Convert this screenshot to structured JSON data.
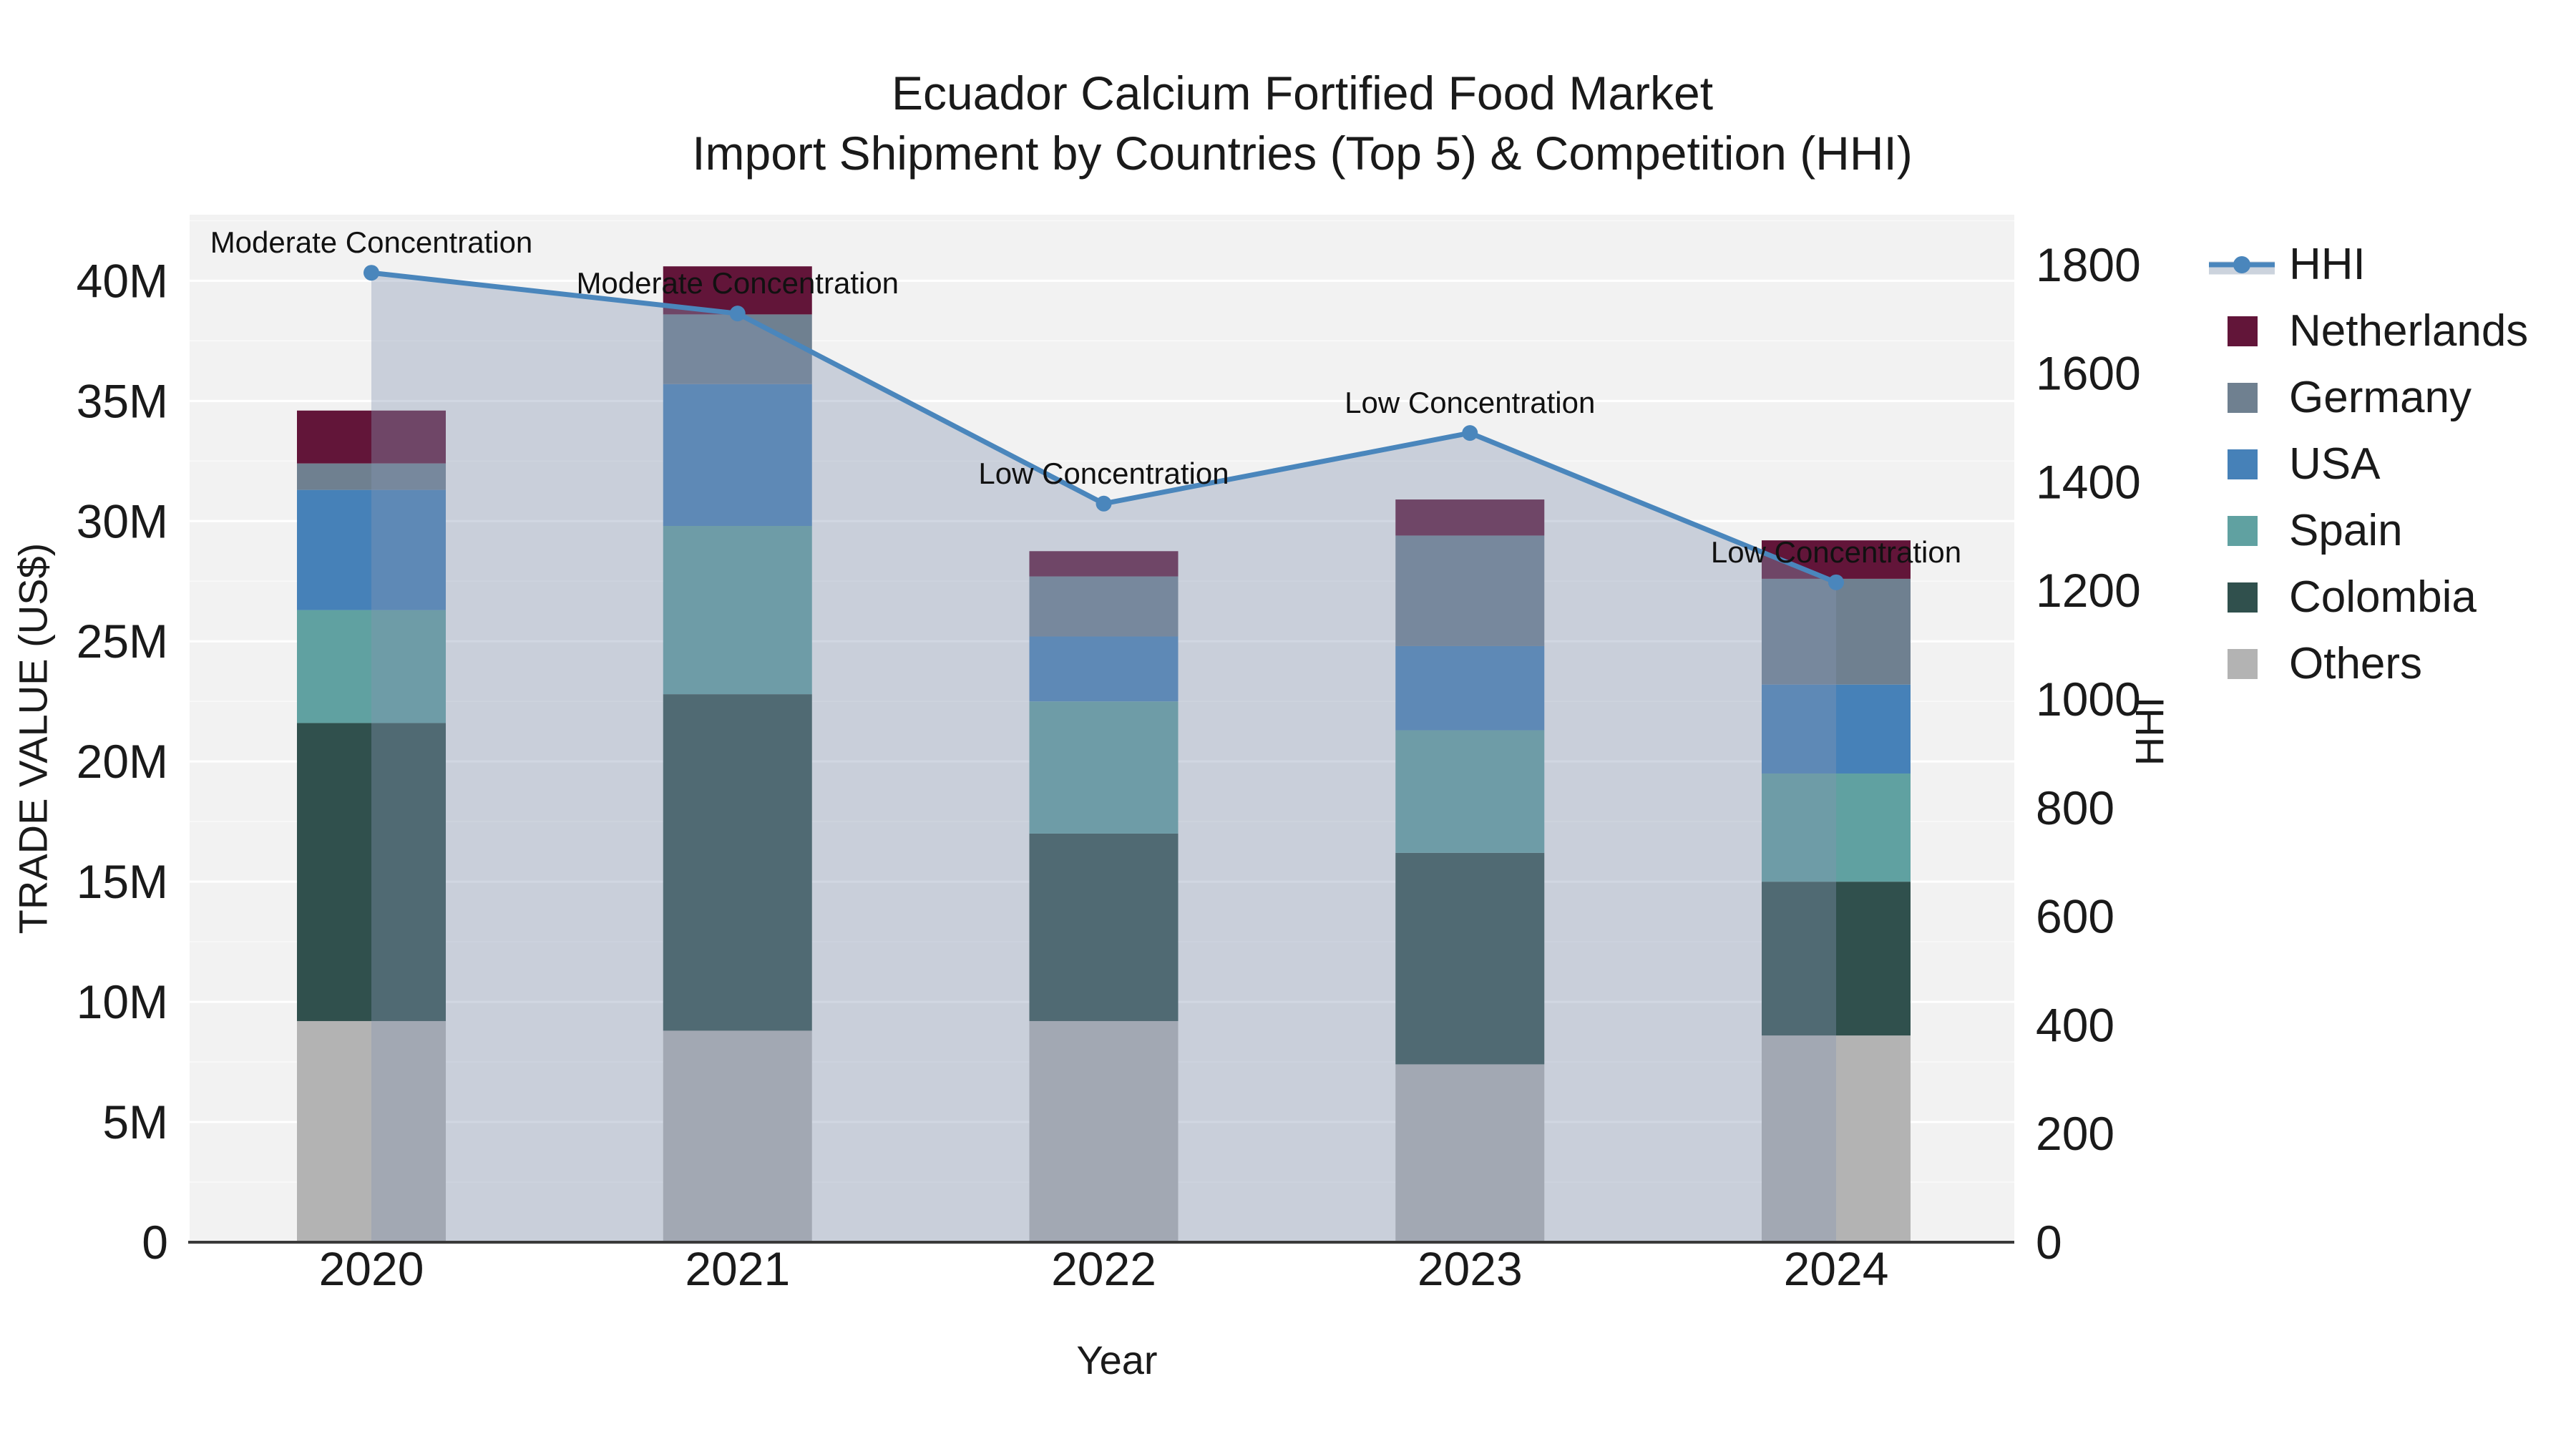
{
  "title": {
    "line1": "Ecuador Calcium Fortified Food Market",
    "line2": "Import Shipment by Countries (Top 5) & Competition (HHI)"
  },
  "axes": {
    "x_title": "Year",
    "y_left_title": "TRADE VALUE (US$)",
    "y_right_title": "HHI"
  },
  "legend": {
    "hhi_label": "HHI",
    "items": [
      "HHI",
      "Netherlands",
      "Germany",
      "USA",
      "Spain",
      "Colombia",
      "Others"
    ]
  },
  "chart_data": {
    "type": "bar",
    "subtype": "stacked-bars-with-line-overlay",
    "title": "Ecuador Calcium Fortified Food Market Import Shipment by Countries (Top 5) & Competition (HHI)",
    "xlabel": "Year",
    "ylabel_left": "TRADE VALUE (US$)",
    "ylabel_right": "HHI",
    "grid": true,
    "legend_position": "right-outside",
    "categories": [
      "2020",
      "2021",
      "2022",
      "2023",
      "2024"
    ],
    "series": [
      {
        "name": "Others",
        "color": "#b3b3b3",
        "values": [
          9.2,
          8.8,
          9.2,
          7.4,
          8.6
        ]
      },
      {
        "name": "Colombia",
        "color": "#30504d",
        "values": [
          12.4,
          14.0,
          7.8,
          8.8,
          6.4
        ]
      },
      {
        "name": "Spain",
        "color": "#60a1a1",
        "values": [
          4.7,
          7.0,
          5.5,
          5.1,
          4.5
        ]
      },
      {
        "name": "USA",
        "color": "#4681b8",
        "values": [
          5.0,
          5.9,
          2.7,
          3.5,
          3.7
        ]
      },
      {
        "name": "Germany",
        "color": "#6f8090",
        "values": [
          1.1,
          2.9,
          2.5,
          4.6,
          4.4
        ]
      },
      {
        "name": "Netherlands",
        "color": "#621539",
        "values": [
          2.2,
          2.0,
          1.05,
          1.5,
          1.6
        ]
      }
    ],
    "bar_totals_millions": [
      34.6,
      40.6,
      28.75,
      30.9,
      29.2
    ],
    "line": {
      "name": "HHI",
      "color": "#4a86bc",
      "values": [
        1785,
        1710,
        1360,
        1490,
        1215
      ]
    },
    "annotations": [
      "Moderate Concentration",
      "Moderate Concentration",
      "Low Concentration",
      "Low Concentration",
      "Low Concentration"
    ],
    "y_left": {
      "unit": "US$ millions",
      "max": 42.75,
      "major_step": 5,
      "minor_step": 2.5,
      "tick_values": [
        0,
        5,
        10,
        15,
        20,
        25,
        30,
        35,
        40
      ],
      "tick_labels": [
        "0",
        "5M",
        "10M",
        "15M",
        "20M",
        "25M",
        "30M",
        "35M",
        "40M"
      ]
    },
    "y_right": {
      "unit": "HHI index",
      "max": 1892,
      "tick_values": [
        0,
        200,
        400,
        600,
        800,
        1000,
        1200,
        1400,
        1600,
        1800
      ],
      "tick_labels": [
        "0",
        "200",
        "400",
        "600",
        "800",
        "1000",
        "1200",
        "1400",
        "1600",
        "1800"
      ]
    },
    "colors": {
      "plot_bg": "#f2f2f2",
      "grid_major": "#ffffff",
      "grid_minor": "#ffffff",
      "area_fill": "rgba(134,150,180,0.38)",
      "axis_line": "#3a3a3a",
      "tick_text": "#1a1a1a",
      "annotation_text": "#111111",
      "hhi_legend_band": "#ccd3dd"
    }
  }
}
